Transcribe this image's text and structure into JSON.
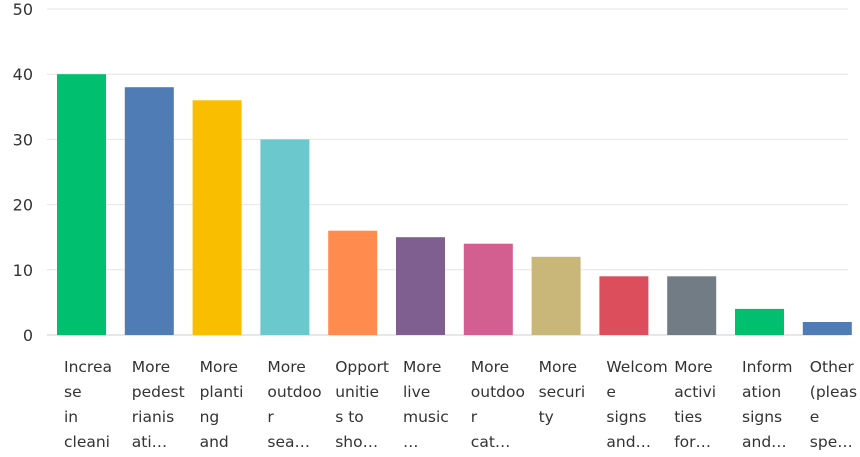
{
  "chart_data": {
    "type": "bar",
    "title": "",
    "xlabel": "",
    "ylabel": "",
    "ylim": [
      0,
      50
    ],
    "yticks": [
      0,
      10,
      20,
      30,
      40,
      50
    ],
    "grid": true,
    "categories": [
      "Increa\nse\nin\ncleani",
      "More\npedest\nrianis\nati…",
      "More\nplanti\nng\nand",
      "More\noutdoo\nr\nsea…",
      "Opport\nunitie\ns to\nsho…",
      "More\nlive\nmusic\n…",
      "More\noutdoo\nr\ncat…",
      "More\nsecuri\nty",
      "Welcom\ne\nsigns\nand…",
      "More\nactivi\nties\nfor…",
      "Inform\nation\nsigns\nand…",
      "Other\n(pleas\ne\nspe…"
    ],
    "values": [
      40,
      38,
      36,
      30,
      16,
      15,
      14,
      12,
      9,
      9,
      4,
      2
    ],
    "colors": [
      "#00bf6f",
      "#507cb6",
      "#f9be00",
      "#6bc8cd",
      "#ff8b4f",
      "#7f5f90",
      "#d25f90",
      "#c9b77a",
      "#dc4e5c",
      "#727c84",
      "#00bf6f",
      "#507cb6"
    ]
  }
}
